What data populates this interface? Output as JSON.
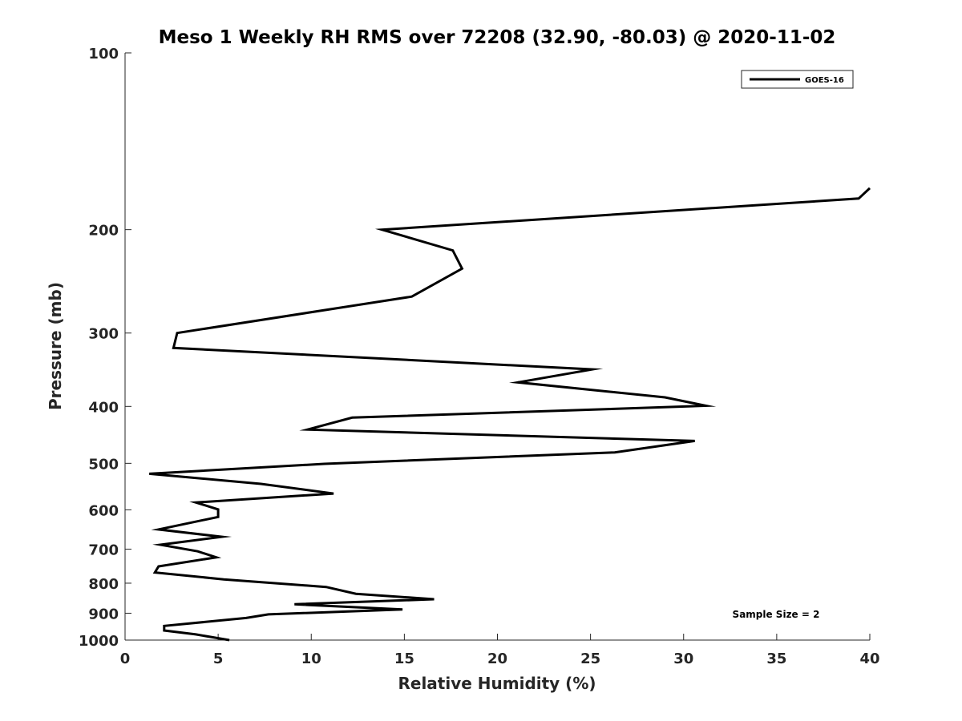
{
  "chart_data": {
    "type": "line",
    "title": "Meso 1 Weekly RH RMS over 72208 (32.90, -80.03) @ 2020-11-02",
    "xlabel": "Relative Humidity (%)",
    "ylabel": "Pressure (mb)",
    "xlim": [
      0,
      40
    ],
    "ylim": [
      100,
      1000
    ],
    "y_scale": "log",
    "y_reversed": true,
    "x_ticks": [
      "0",
      "5",
      "10",
      "15",
      "20",
      "25",
      "30",
      "35",
      "40"
    ],
    "y_ticks": [
      "100",
      "200",
      "300",
      "400",
      "500",
      "600",
      "700",
      "800",
      "900",
      "1000"
    ],
    "grid": false,
    "legend_position": "top-right",
    "annotation": "Sample Size = 2",
    "line_color": "#000000",
    "series": [
      {
        "name": "GOES-16",
        "points": [
          [
            40.0,
            170
          ],
          [
            39.4,
            177
          ],
          [
            13.8,
            200
          ],
          [
            17.6,
            217
          ],
          [
            18.1,
            233
          ],
          [
            15.4,
            260
          ],
          [
            2.8,
            300
          ],
          [
            2.6,
            318
          ],
          [
            25.1,
            346
          ],
          [
            21.1,
            364
          ],
          [
            29.0,
            386
          ],
          [
            31.2,
            399
          ],
          [
            12.2,
            418
          ],
          [
            9.8,
            438
          ],
          [
            30.6,
            458
          ],
          [
            26.3,
            479
          ],
          [
            10.7,
            501
          ],
          [
            1.3,
            521
          ],
          [
            7.3,
            542
          ],
          [
            11.2,
            563
          ],
          [
            3.8,
            583
          ],
          [
            5.0,
            599
          ],
          [
            5.0,
            617
          ],
          [
            1.8,
            648
          ],
          [
            5.2,
            667
          ],
          [
            1.9,
            688
          ],
          [
            3.9,
            706
          ],
          [
            4.9,
            723
          ],
          [
            1.8,
            749
          ],
          [
            1.6,
            767
          ],
          [
            5.3,
            788
          ],
          [
            10.8,
            812
          ],
          [
            12.4,
            834
          ],
          [
            16.6,
            852
          ],
          [
            9.1,
            869
          ],
          [
            14.9,
            887
          ],
          [
            7.7,
            904
          ],
          [
            6.5,
            917
          ],
          [
            2.1,
            946
          ],
          [
            2.1,
            963
          ],
          [
            3.8,
            978
          ],
          [
            5.6,
            1000
          ]
        ]
      }
    ]
  }
}
